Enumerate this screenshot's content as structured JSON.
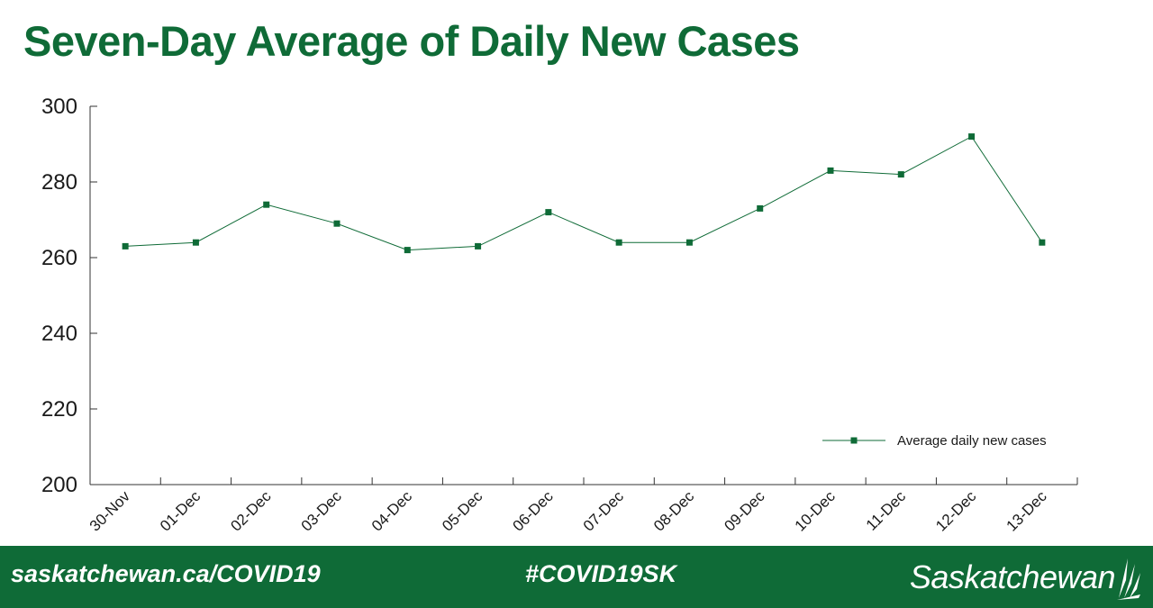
{
  "chart_data": {
    "type": "line",
    "title": "Seven-Day Average of Daily New Cases",
    "categories": [
      "30-Nov",
      "01-Dec",
      "02-Dec",
      "03-Dec",
      "04-Dec",
      "05-Dec",
      "06-Dec",
      "07-Dec",
      "08-Dec",
      "09-Dec",
      "10-Dec",
      "11-Dec",
      "12-Dec",
      "13-Dec"
    ],
    "series": [
      {
        "name": "Average daily new cases",
        "values": [
          263,
          264,
          274,
          269,
          262,
          263,
          272,
          264,
          264,
          273,
          283,
          282,
          292,
          264
        ]
      }
    ],
    "ylim": [
      200,
      300
    ],
    "yticks": [
      200,
      220,
      240,
      260,
      280,
      300
    ],
    "xlabel": "",
    "ylabel": "",
    "legend_position": "bottom-right",
    "grid": false,
    "line_color": "#0f6b37"
  },
  "footer": {
    "url": "saskatchewan.ca/COVID19",
    "hashtag": "#COVID19SK",
    "logo_text": "Saskatchewan"
  },
  "colors": {
    "brand_green": "#0f6b37"
  }
}
